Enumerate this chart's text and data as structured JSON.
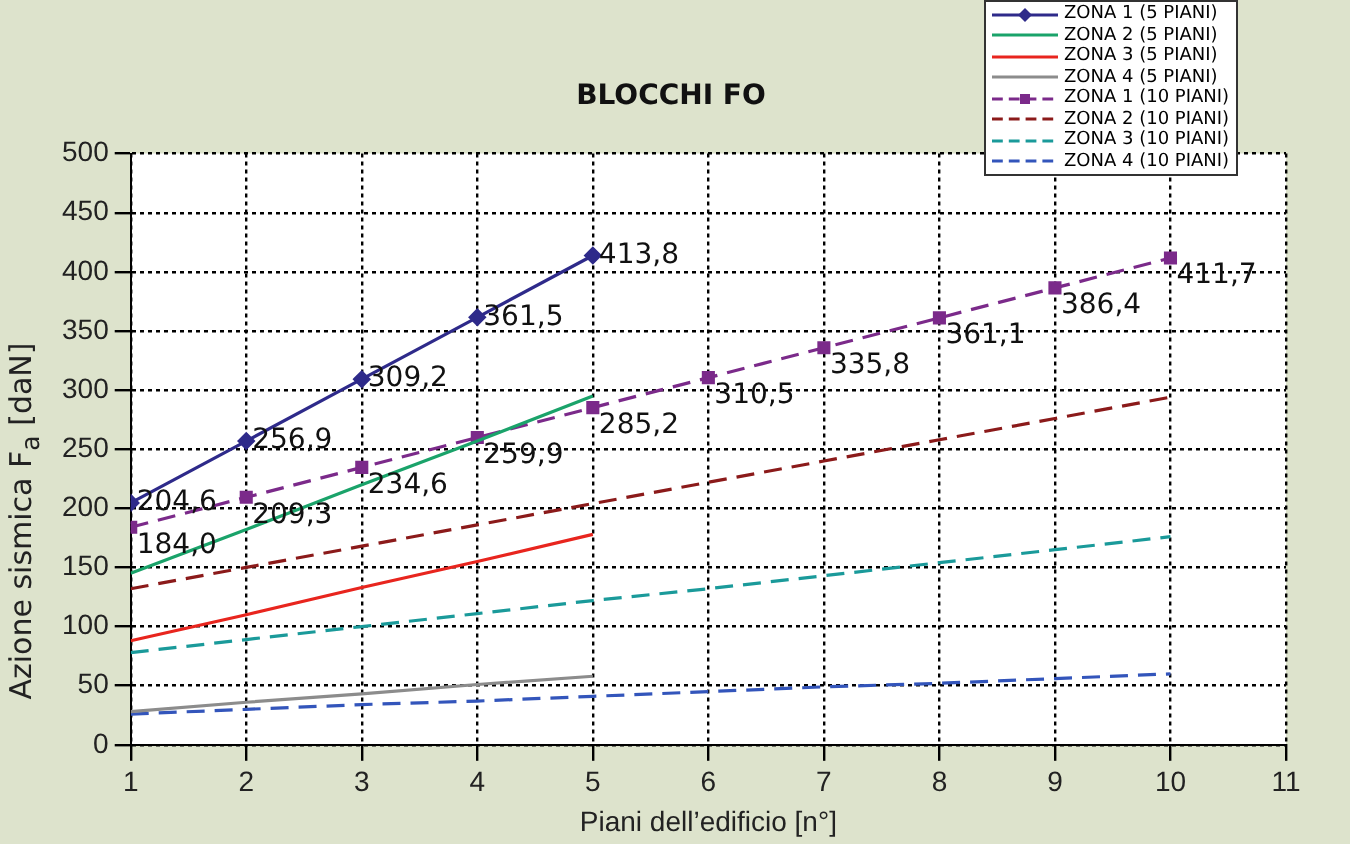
{
  "chart_data": {
    "type": "line",
    "title": "BLOCCHI FO",
    "xlabel": "Piani dell’edificio [n°]",
    "ylabel": "Azione sismica F$_{a}$ [daN]",
    "x": [
      1,
      2,
      3,
      4,
      5,
      6,
      7,
      8,
      9,
      10
    ],
    "xlim": [
      1,
      11
    ],
    "xticks": [
      1,
      2,
      3,
      4,
      5,
      6,
      7,
      8,
      9,
      10,
      11
    ],
    "ylim": [
      0,
      500
    ],
    "yticks": [
      0,
      50,
      100,
      150,
      200,
      250,
      300,
      350,
      400,
      450,
      500
    ],
    "grid": true,
    "legend": "top right",
    "series": [
      {
        "name": "ZONA 1 (5 PIANI)",
        "color": "#2e2a8a",
        "marker": "diamond",
        "line_style": "solid",
        "x": [
          1,
          2,
          3,
          4,
          5
        ],
        "values": [
          204.6,
          256.9,
          309.2,
          361.5,
          413.8
        ],
        "value_labels": [
          "204,6",
          "256,9",
          "309,2",
          "361,5",
          "413,8"
        ]
      },
      {
        "name": "ZONA 2 (5 PIANI)",
        "color": "#1aa36a",
        "marker": "none",
        "line_style": "solid",
        "x": [
          1,
          2,
          3,
          4,
          5
        ],
        "values": [
          145,
          182,
          220,
          257,
          295
        ]
      },
      {
        "name": "ZONA 3 (5 PIANI)",
        "color": "#e8251e",
        "marker": "none",
        "line_style": "solid",
        "x": [
          1,
          2,
          3,
          4,
          5
        ],
        "values": [
          88,
          110,
          133,
          155,
          178
        ]
      },
      {
        "name": "ZONA 4 (5 PIANI)",
        "color": "#8c8c8c",
        "marker": "none",
        "line_style": "solid",
        "x": [
          1,
          2,
          3,
          4,
          5
        ],
        "values": [
          28,
          36,
          43,
          51,
          58
        ]
      },
      {
        "name": "ZONA 1 (10 PIANI)",
        "color": "#7b2a8a",
        "marker": "square",
        "line_style": "dashed",
        "values": [
          184.0,
          209.3,
          234.6,
          259.9,
          285.2,
          310.5,
          335.8,
          361.1,
          386.4,
          411.7
        ],
        "value_labels": [
          "184,0",
          "209,3",
          "234,6",
          "259,9",
          "285,2",
          "310,5",
          "335,8",
          "361,1",
          "386,4",
          "411,7"
        ]
      },
      {
        "name": "ZONA 2 (10 PIANI)",
        "color": "#8b1a1a",
        "marker": "none",
        "line_style": "dashed",
        "values": [
          132,
          150,
          168,
          186,
          204,
          222,
          240,
          258,
          276,
          294
        ]
      },
      {
        "name": "ZONA 3 (10 PIANI)",
        "color": "#1a9a9a",
        "marker": "none",
        "line_style": "dashed",
        "values": [
          78,
          89,
          100,
          111,
          122,
          132,
          143,
          154,
          165,
          176
        ]
      },
      {
        "name": "ZONA 4 (10 PIANI)",
        "color": "#3355bb",
        "marker": "none",
        "line_style": "dashed",
        "values": [
          26,
          30,
          34,
          37,
          41,
          45,
          49,
          52,
          56,
          60
        ]
      }
    ]
  }
}
